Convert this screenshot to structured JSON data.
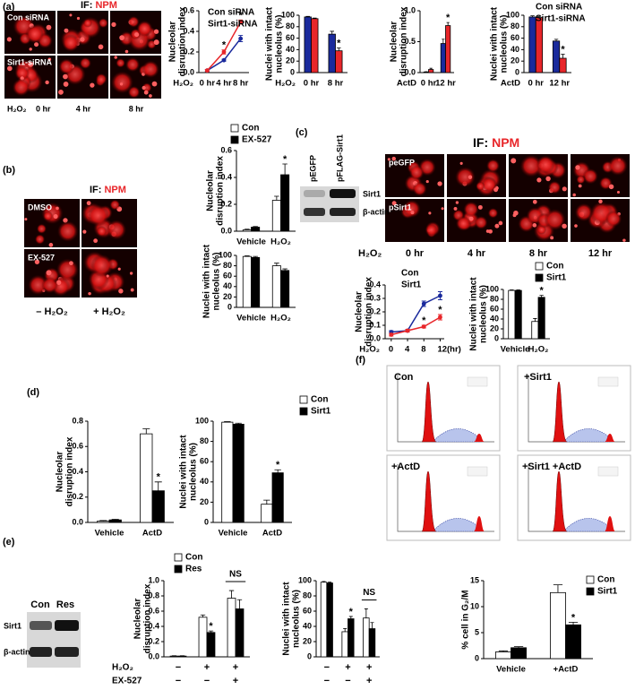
{
  "chart_data": [
    {
      "type": "line",
      "y_label": [
        "Nucleolar",
        "disruption index"
      ],
      "x_label": "H₂O₂",
      "categories": [
        "0 hr",
        "4 hr",
        "8 hr"
      ],
      "series": [
        {
          "name": "Con siRNA",
          "color": "#1a2a9c",
          "values": [
            0.02,
            0.12,
            0.33
          ],
          "errors": [
            0.01,
            0.01,
            0.03
          ]
        },
        {
          "name": "Sirt1-siRNA",
          "color": "#e8262a",
          "values": [
            0.02,
            0.2,
            0.49
          ],
          "errors": [
            0.01,
            0.02,
            0.02
          ],
          "sig": [
            null,
            "*",
            "*"
          ]
        }
      ],
      "ylim": [
        0,
        0.6
      ],
      "yticks": [
        {
          "value": 0,
          "label": "0.0"
        },
        0.2,
        0.4,
        0.6
      ]
    },
    {
      "type": "bar",
      "y_label": [
        "Nuclei with intact",
        "nucleolus (%)"
      ],
      "x_label": "H₂O₂",
      "categories": [
        "0 hr",
        "8 hr"
      ],
      "series": [
        {
          "color": "#1a2a9c",
          "values": [
            97,
            67
          ],
          "errors": [
            1,
            5
          ]
        },
        {
          "color": "#e8262a",
          "values": [
            94,
            38
          ],
          "errors": [
            1,
            5
          ],
          "sig": [
            null,
            "*"
          ]
        }
      ],
      "ylim": [
        0,
        100
      ],
      "yticks": [
        0,
        20,
        40,
        60,
        80,
        100
      ]
    },
    {
      "type": "bar",
      "y_label": [
        "Nucleolar",
        "disruption index"
      ],
      "x_label": "ActD",
      "categories": [
        "0 hr",
        "12 hr"
      ],
      "series": [
        {
          "color": "#1a2a9c",
          "values": [
            0.01,
            0.47
          ],
          "errors": [
            0.005,
            0.07
          ]
        },
        {
          "color": "#e8262a",
          "values": [
            0.05,
            0.76
          ],
          "errors": [
            0.02,
            0.05
          ],
          "sig": [
            null,
            "*"
          ]
        }
      ],
      "ylim": [
        0,
        1
      ],
      "yticks": [
        {
          "value": 0,
          "label": "0.0"
        },
        0.5,
        {
          "value": 1,
          "label": "1.0"
        }
      ]
    },
    {
      "type": "bar",
      "y_label": [
        "Nuclei with intact",
        "nucleolus (%)"
      ],
      "x_label": "ActD",
      "categories": [
        "0 hr",
        "12 hr"
      ],
      "series": [
        {
          "name": "Con siRNA",
          "color": "#1a2a9c",
          "values": [
            97,
            55
          ],
          "errors": [
            2,
            3
          ]
        },
        {
          "name": "Sirt1-siRNA",
          "color": "#e8262a",
          "values": [
            96,
            25
          ],
          "errors": [
            2,
            7
          ],
          "sig": [
            null,
            "*"
          ]
        }
      ],
      "ylim": [
        0,
        100
      ],
      "yticks": [
        0,
        20,
        40,
        60,
        80,
        100
      ]
    },
    {
      "type": "bar",
      "y_label": [
        "Nucleolar",
        "disruption index"
      ],
      "categories": [
        "Vehicle",
        "H₂O₂"
      ],
      "series": [
        {
          "name": "Con",
          "color": "#ffffff",
          "values": [
            0.01,
            0.23
          ],
          "errors": [
            0.005,
            0.03
          ]
        },
        {
          "name": "EX-527",
          "color": "#000000",
          "values": [
            0.03,
            0.42
          ],
          "errors": [
            0.005,
            0.08
          ],
          "sig": [
            null,
            "*"
          ]
        }
      ],
      "ylim": [
        0,
        0.6
      ],
      "yticks": [
        {
          "value": 0,
          "label": "0.0"
        },
        0.2,
        0.4,
        0.6
      ]
    },
    {
      "type": "bar",
      "y_label": [
        "Nuclei with intact",
        "nucleolus (%)"
      ],
      "categories": [
        "Vehicle",
        "H₂O₂"
      ],
      "series": [
        {
          "color": "#ffffff",
          "values": [
            98,
            80
          ],
          "errors": [
            1,
            5
          ]
        },
        {
          "color": "#000000",
          "values": [
            96,
            71
          ],
          "errors": [
            2,
            3
          ]
        }
      ],
      "ylim": [
        0,
        100
      ],
      "yticks": [
        0,
        20,
        40,
        60,
        80,
        100
      ]
    },
    {
      "type": "line",
      "y_label": [
        "Nucleolar",
        "disruption index"
      ],
      "x_label": "H₂O₂",
      "x": [
        0,
        4,
        8,
        12
      ],
      "xlim": [
        -1.5,
        13
      ],
      "xticks": [
        0,
        4,
        8,
        {
          "value": 12,
          "label": "12(hr)"
        }
      ],
      "series": [
        {
          "name": "Con",
          "color": "#1a2a9c",
          "values": [
            0.05,
            0.06,
            0.26,
            0.32
          ],
          "errors": [
            0.01,
            0.01,
            0.02,
            0.03
          ]
        },
        {
          "name": "Sirt1",
          "color": "#e8262a",
          "values": [
            0.03,
            0.06,
            0.09,
            0.16
          ],
          "errors": [
            0.01,
            0.01,
            0.01,
            0.02
          ],
          "sig": [
            null,
            null,
            "*",
            "*"
          ]
        }
      ],
      "ylim": [
        0,
        0.4
      ],
      "yticks": [
        {
          "value": 0,
          "label": "0.0"
        },
        0.1,
        0.2,
        0.3,
        0.4
      ]
    },
    {
      "type": "bar",
      "y_label": [
        "Nuclei with intact",
        "nucleolus (%)"
      ],
      "categories": [
        "Vehicle",
        "H₂O₂"
      ],
      "series": [
        {
          "name": "Con",
          "color": "#ffffff",
          "values": [
            98,
            35
          ],
          "errors": [
            1,
            6
          ]
        },
        {
          "name": "Sirt1",
          "color": "#000000",
          "values": [
            98,
            84
          ],
          "errors": [
            1,
            4
          ],
          "sig": [
            null,
            "*"
          ]
        }
      ],
      "ylim": [
        0,
        100
      ],
      "yticks": [
        0,
        20,
        40,
        60,
        80,
        100
      ]
    },
    {
      "type": "bar",
      "y_label": [
        "Nucleolar",
        "disruption index"
      ],
      "categories": [
        "Vehicle",
        "ActD"
      ],
      "series": [
        {
          "color": "#ffffff",
          "values": [
            0.01,
            0.7
          ],
          "errors": [
            0.005,
            0.04
          ]
        },
        {
          "color": "#000000",
          "values": [
            0.02,
            0.25
          ],
          "errors": [
            0.005,
            0.07
          ],
          "sig": [
            null,
            "*"
          ]
        }
      ],
      "ylim": [
        0,
        0.8
      ],
      "yticks": [
        {
          "value": 0,
          "label": "0.0"
        },
        0.2,
        0.4,
        0.6,
        0.8
      ]
    },
    {
      "type": "bar",
      "y_label": [
        "Nuclei with intact",
        "nucleolus (%)"
      ],
      "categories": [
        "Vehicle",
        "ActD"
      ],
      "series": [
        {
          "name": "Con",
          "color": "#ffffff",
          "values": [
            99,
            18
          ],
          "errors": [
            0.5,
            4
          ]
        },
        {
          "name": "Sirt1",
          "color": "#000000",
          "values": [
            97,
            49
          ],
          "errors": [
            1,
            3
          ],
          "sig": [
            null,
            "*"
          ]
        }
      ],
      "ylim": [
        0,
        100
      ],
      "yticks": [
        0,
        20,
        40,
        60,
        80,
        100
      ]
    },
    {
      "type": "bar",
      "y_label": [
        "Nucleolar",
        "disruption index"
      ],
      "categories": [
        null,
        null,
        null
      ],
      "x_rows": [
        {
          "label": "H₂O₂",
          "values": [
            "−",
            "+",
            "+"
          ]
        },
        {
          "label": "EX-527",
          "values": [
            "−",
            "−",
            "+"
          ]
        }
      ],
      "series": [
        {
          "name": "Con",
          "color": "#ffffff",
          "values": [
            0.01,
            0.52,
            0.77
          ],
          "errors": [
            0.005,
            0.03,
            0.1
          ]
        },
        {
          "name": "Res",
          "color": "#000000",
          "values": [
            0.01,
            0.32,
            0.63
          ],
          "errors": [
            0.005,
            0.02,
            0.12
          ],
          "sig": [
            null,
            "*",
            null
          ]
        }
      ],
      "annotations": [
        {
          "text": "NS"
        }
      ],
      "ylim": [
        0,
        1
      ],
      "yticks": [
        {
          "value": 0,
          "label": "0.0"
        },
        0.2,
        0.4,
        0.6,
        0.8,
        {
          "value": 1,
          "label": "1.0"
        }
      ]
    },
    {
      "type": "bar",
      "y_label": [
        "Nuclei with intact",
        "nucleolus (%)"
      ],
      "categories": [
        null,
        null,
        null
      ],
      "x_rows": [
        {
          "values": [
            "−",
            "+",
            "+"
          ]
        },
        {
          "values": [
            "−",
            "−",
            "+"
          ]
        }
      ],
      "series": [
        {
          "color": "#ffffff",
          "values": [
            98,
            33,
            51
          ],
          "errors": [
            1,
            4,
            12
          ]
        },
        {
          "color": "#000000",
          "values": [
            97,
            50,
            37
          ],
          "errors": [
            1,
            3,
            8
          ],
          "sig": [
            null,
            "*",
            null
          ]
        }
      ],
      "annotations": [
        {
          "text": "NS"
        }
      ],
      "ylim": [
        0,
        100
      ],
      "yticks": [
        0,
        20,
        40,
        60,
        80,
        100
      ]
    },
    {
      "type": "bar",
      "y_label": [
        "% cell in G₂/M"
      ],
      "categories": [
        "Vehicle",
        "+ActD"
      ],
      "series": [
        {
          "name": "Con",
          "color": "#ffffff",
          "values": [
            1.3,
            12.7
          ],
          "errors": [
            0.2,
            1.5
          ]
        },
        {
          "name": "Sirt1",
          "color": "#000000",
          "values": [
            2.1,
            6.5
          ],
          "errors": [
            0.2,
            0.5
          ],
          "sig": [
            null,
            "*"
          ]
        }
      ],
      "ylim": [
        0,
        15
      ],
      "yticks": [
        0,
        5,
        10,
        15
      ]
    }
  ],
  "figure": {
    "panel_labels": [
      "(a)",
      "(b)",
      "(c)",
      "(d)",
      "(e)",
      "(f)"
    ],
    "a": {
      "if_label": "IF:",
      "if_target": "NPM",
      "rows": [
        "Con siRNA",
        "Sirt1-siRNA"
      ],
      "x_label": "H₂O₂",
      "times": [
        "0 hr",
        "4 hr",
        "8 hr"
      ]
    },
    "b": {
      "if_label": "IF:",
      "if_target": "NPM",
      "rows": [
        "DMSO",
        "EX-527"
      ],
      "cols": [
        "– H₂O₂",
        "+ H₂O₂"
      ]
    },
    "c": {
      "if_label": "IF:",
      "if_target": "NPM",
      "rows": [
        "peGFP",
        "pSirt1"
      ],
      "x_label": "H₂O₂",
      "times": [
        "0 hr",
        "4 hr",
        "8 hr",
        "12 hr"
      ],
      "blot_lanes": [
        "pEGFP",
        "pFLAG-Sirt1"
      ],
      "blot_bands": [
        "Sirt1",
        "β-actin"
      ]
    },
    "e": {
      "blot_lanes": [
        "Con",
        "Res"
      ],
      "blot_bands": [
        "Sirt1",
        "β-actin"
      ]
    },
    "f": {
      "titles": [
        "Con",
        "+Sirt1",
        "+ActD",
        "+Sirt1 +ActD"
      ]
    }
  }
}
